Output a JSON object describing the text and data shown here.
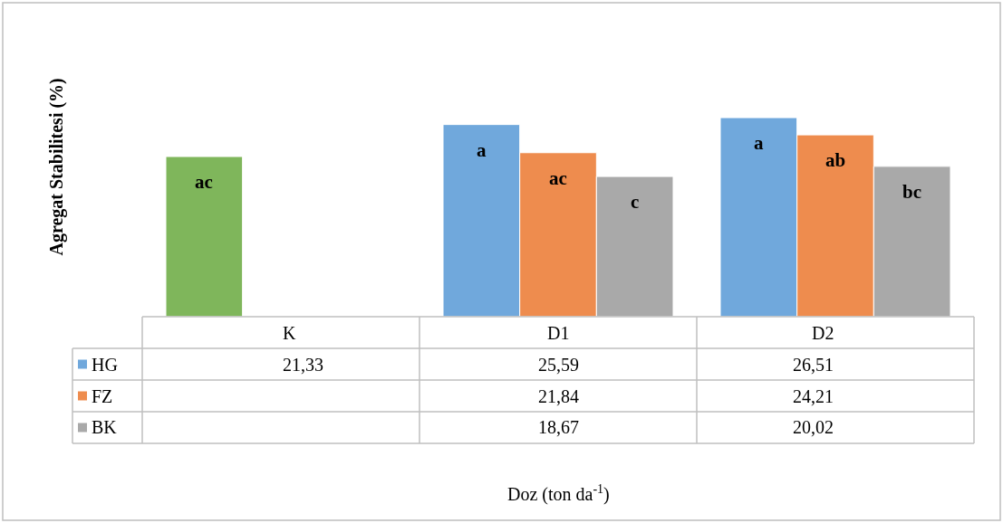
{
  "chart_data": {
    "type": "bar",
    "ylabel": "Agregat Stabilitesi (%)",
    "categories": [
      "K",
      "D1",
      "D2"
    ],
    "tick_labels": false,
    "legend": "bottom left",
    "annotations": [
      "ac",
      "a",
      "ac",
      "c",
      "a",
      "ab",
      "bc",
      "Doz (ton da$^{-1}$)"
    ],
    "series": [
      {
        "name": "HG",
        "color": "#70a8dc",
        "colors": [
          "#7fb65b",
          "#70a8dc",
          "#70a8dc"
        ],
        "values": [
          21.33,
          25.59,
          26.51
        ],
        "value_labels": [
          "21,33",
          "25,59",
          "26,51"
        ]
      },
      {
        "name": "FZ",
        "color": "#ee8c4e",
        "values": [
          null,
          21.84,
          24.21
        ],
        "value_labels": [
          null,
          "21,84",
          "24,21"
        ]
      },
      {
        "name": "BK",
        "color": "#a9a9a9",
        "values": [
          null,
          18.67,
          20.02
        ],
        "value_labels": [
          null,
          "18,67",
          "20,02"
        ]
      }
    ]
  }
}
